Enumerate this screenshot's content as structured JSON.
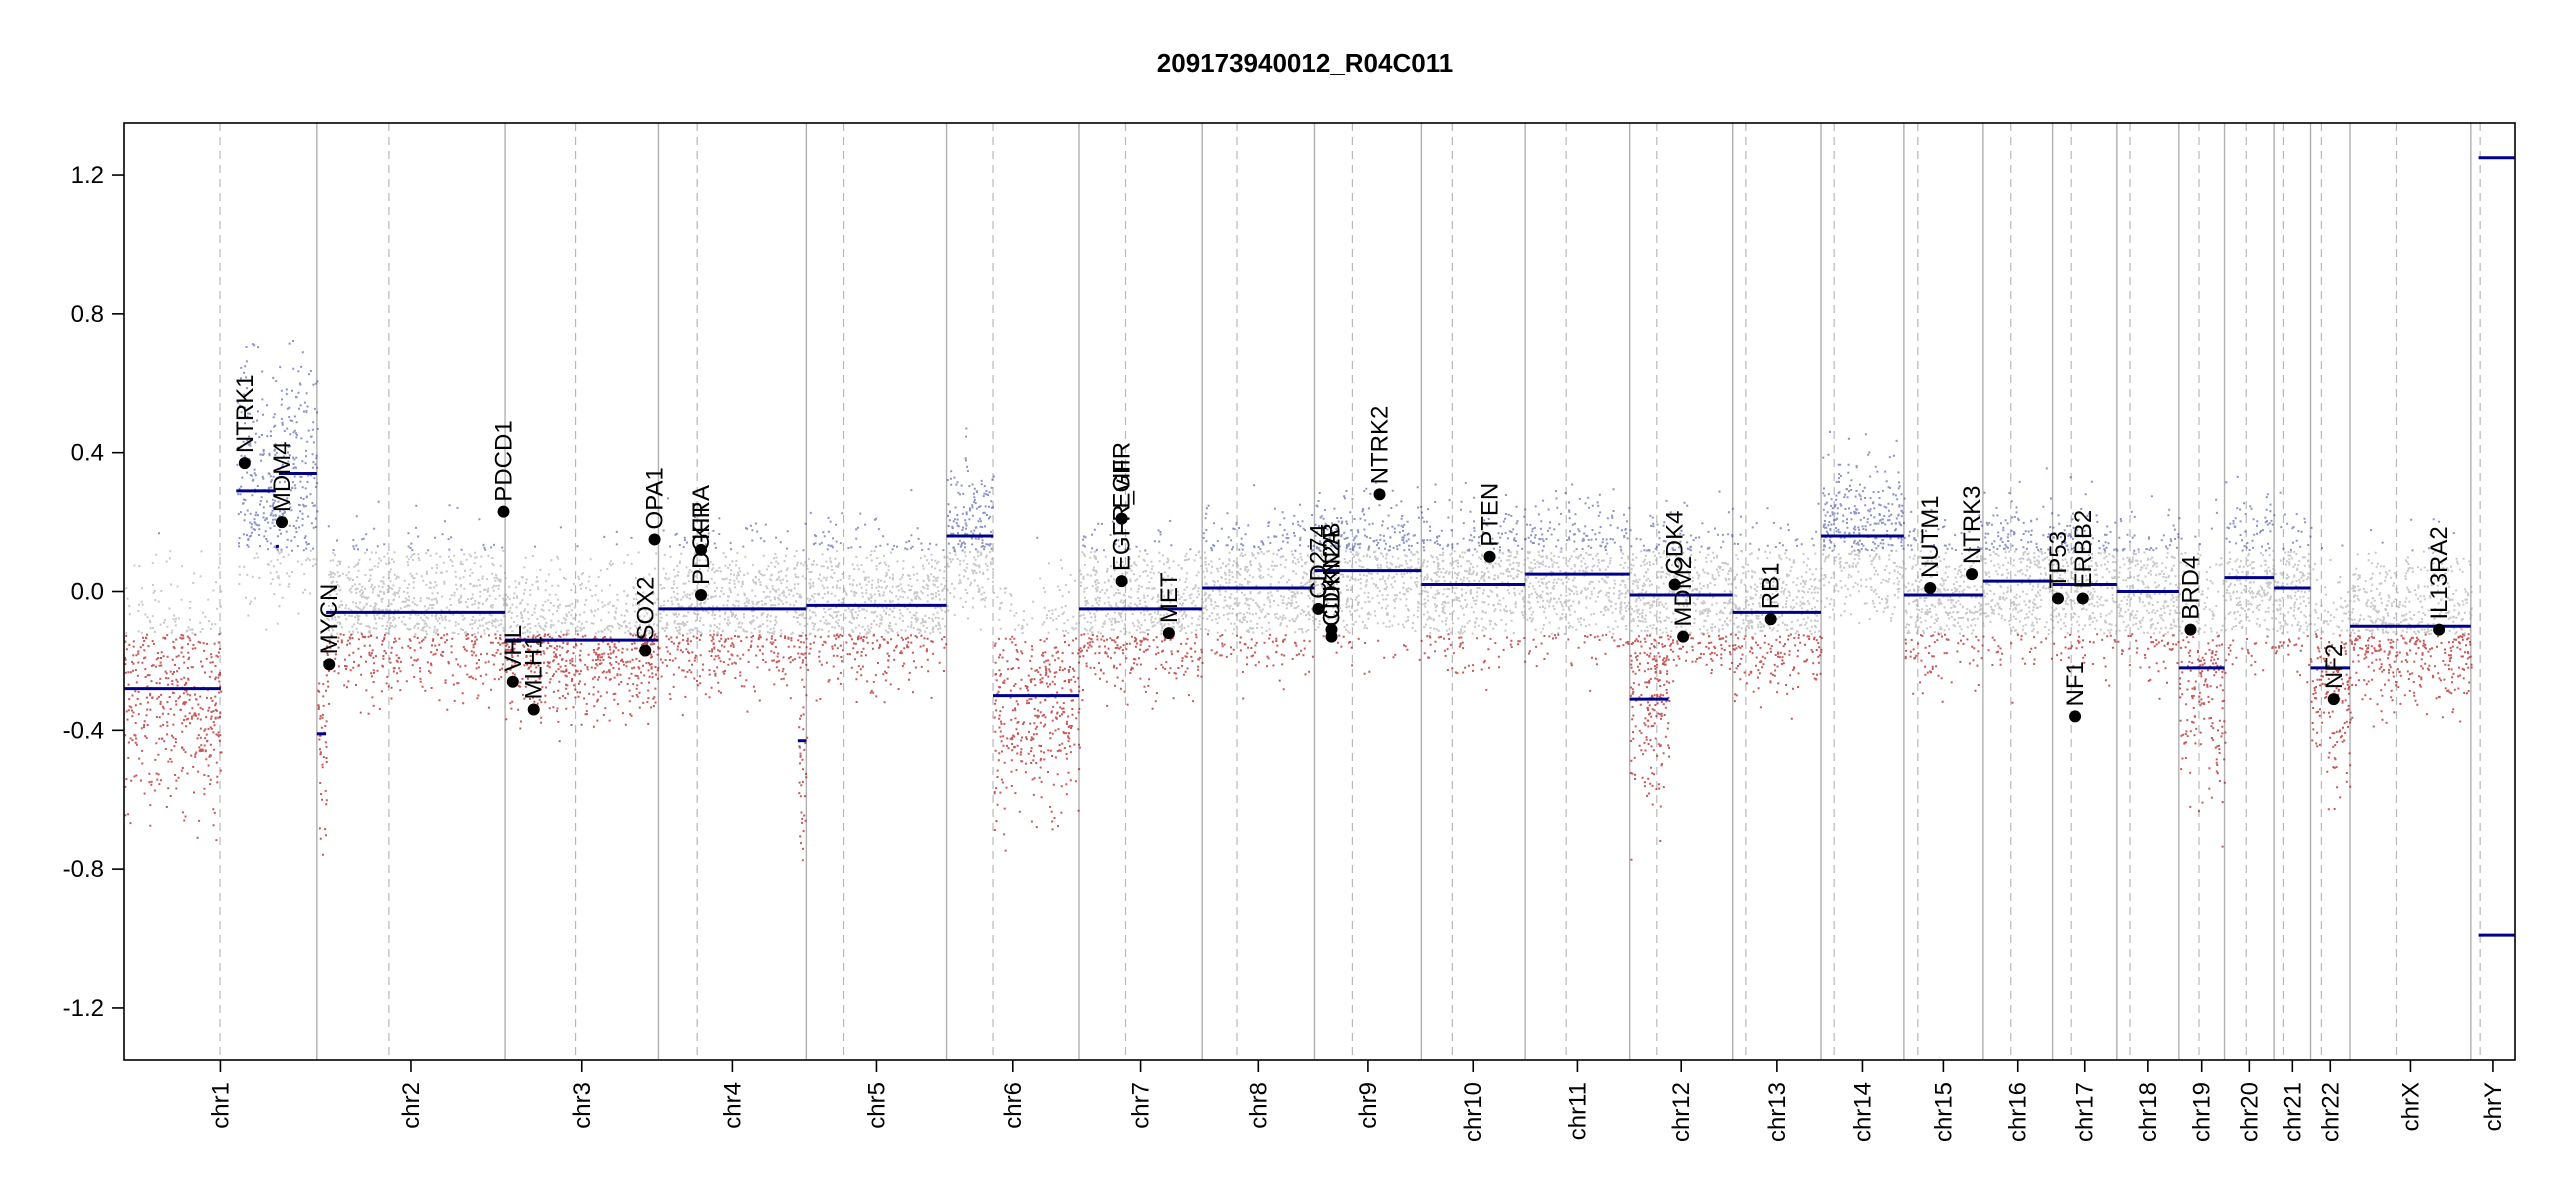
{
  "chart_data": {
    "type": "scatter",
    "title": "209173940012_R04C011",
    "xlabel": "",
    "ylabel": "",
    "ylim": [
      -1.35,
      1.35
    ],
    "y_ticks": [
      "1.2",
      "0.8",
      "0.4",
      "0.0",
      "-0.4",
      "-0.8",
      "-1.2"
    ],
    "y_tick_values": [
      1.2,
      0.8,
      0.4,
      0.0,
      -0.4,
      -0.8,
      -1.2
    ],
    "grid": "vertical chromosome boundaries and centromere dashes",
    "colors": {
      "gain": "#2b3a9a",
      "loss": "#b22222",
      "neutral": "#9a9a9a",
      "segment": "#00008b",
      "gene": "#000000",
      "boundary": "#b0b0b0"
    },
    "chromosome_labels": [
      "chr1",
      "chr2",
      "chr3",
      "chr4",
      "chr5",
      "chr6",
      "chr7",
      "chr8",
      "chr9",
      "chr10",
      "chr11",
      "chr12",
      "chr13",
      "chr14",
      "chr15",
      "chr16",
      "chr17",
      "chr18",
      "chr19",
      "chr20",
      "chr21",
      "chr22",
      "chrX",
      "chrY"
    ],
    "chromosome_lengths_mb": [
      249,
      243,
      198,
      191,
      181,
      171,
      159,
      145,
      138,
      134,
      135,
      133,
      114,
      107,
      102,
      90,
      83,
      80,
      59,
      64,
      47,
      51,
      156,
      57
    ],
    "centromeres_mb": [
      124,
      93,
      91,
      50,
      48,
      60,
      60,
      45,
      49,
      40,
      53,
      35,
      17,
      17,
      18,
      36,
      24,
      17,
      26,
      28,
      12,
      14,
      60,
      12
    ],
    "segments": [
      {
        "chr": "chr1",
        "start": 0,
        "end": 125,
        "value": -0.28
      },
      {
        "chr": "chr1",
        "start": 145,
        "end": 196,
        "value": 0.29
      },
      {
        "chr": "chr1",
        "start": 196,
        "end": 200,
        "value": 0.13
      },
      {
        "chr": "chr1",
        "start": 200,
        "end": 249,
        "value": 0.34
      },
      {
        "chr": "chr2",
        "start": 0,
        "end": 12,
        "value": -0.41
      },
      {
        "chr": "chr2",
        "start": 12,
        "end": 243,
        "value": -0.06
      },
      {
        "chr": "chr3",
        "start": 0,
        "end": 198,
        "value": -0.14
      },
      {
        "chr": "chr4",
        "start": 0,
        "end": 191,
        "value": -0.05
      },
      {
        "chr": "chr4",
        "start": 180,
        "end": 191,
        "value": -0.43
      },
      {
        "chr": "chr5",
        "start": 0,
        "end": 181,
        "value": -0.04
      },
      {
        "chr": "chr6",
        "start": 0,
        "end": 60,
        "value": 0.16
      },
      {
        "chr": "chr6",
        "start": 60,
        "end": 171,
        "value": -0.3
      },
      {
        "chr": "chr7",
        "start": 0,
        "end": 159,
        "value": -0.05
      },
      {
        "chr": "chr8",
        "start": 0,
        "end": 145,
        "value": 0.01
      },
      {
        "chr": "chr9",
        "start": 0,
        "end": 138,
        "value": 0.06
      },
      {
        "chr": "chr10",
        "start": 0,
        "end": 134,
        "value": 0.02
      },
      {
        "chr": "chr11",
        "start": 0,
        "end": 135,
        "value": 0.05
      },
      {
        "chr": "chr12",
        "start": 0,
        "end": 50,
        "value": -0.31
      },
      {
        "chr": "chr12",
        "start": 0,
        "end": 133,
        "value": -0.01
      },
      {
        "chr": "chr13",
        "start": 0,
        "end": 114,
        "value": -0.06
      },
      {
        "chr": "chr14",
        "start": 0,
        "end": 107,
        "value": 0.16
      },
      {
        "chr": "chr15",
        "start": 0,
        "end": 102,
        "value": -0.01
      },
      {
        "chr": "chr16",
        "start": 0,
        "end": 90,
        "value": 0.03
      },
      {
        "chr": "chr17",
        "start": 0,
        "end": 83,
        "value": 0.02
      },
      {
        "chr": "chr18",
        "start": 0,
        "end": 80,
        "value": 0.0
      },
      {
        "chr": "chr19",
        "start": 0,
        "end": 59,
        "value": -0.22
      },
      {
        "chr": "chr20",
        "start": 0,
        "end": 64,
        "value": 0.04
      },
      {
        "chr": "chr21",
        "start": 0,
        "end": 47,
        "value": 0.01
      },
      {
        "chr": "chr22",
        "start": 0,
        "end": 51,
        "value": -0.22
      },
      {
        "chr": "chrX",
        "start": 0,
        "end": 156,
        "value": -0.1
      },
      {
        "chr": "chrY",
        "start": 10,
        "end": 57,
        "value": -0.99
      },
      {
        "chr": "chrY",
        "start": 10,
        "end": 57,
        "value": 1.25
      }
    ],
    "genes": [
      {
        "name": "NTRK1",
        "chr": "chr1",
        "pos": 156,
        "value": 0.37
      },
      {
        "name": "MDM4",
        "chr": "chr1",
        "pos": 204,
        "value": 0.2
      },
      {
        "name": "MYCN",
        "chr": "chr2",
        "pos": 16,
        "value": -0.21
      },
      {
        "name": "PDCD1",
        "chr": "chr2",
        "pos": 241,
        "value": 0.23
      },
      {
        "name": "VHL",
        "chr": "chr3",
        "pos": 10,
        "value": -0.26
      },
      {
        "name": "MLH1",
        "chr": "chr3",
        "pos": 37,
        "value": -0.34
      },
      {
        "name": "SOX2",
        "chr": "chr3",
        "pos": 181,
        "value": -0.17
      },
      {
        "name": "OPA1",
        "chr": "chr3",
        "pos": 193,
        "value": 0.15
      },
      {
        "name": "KIT",
        "chr": "chr4",
        "pos": 55,
        "value": 0.12
      },
      {
        "name": "PDGFRA",
        "chr": "chr4",
        "pos": 55,
        "value": -0.01
      },
      {
        "name": "EGFR",
        "chr": "chr7",
        "pos": 55,
        "value": 0.21
      },
      {
        "name": "EGFR_vIII",
        "chr": "chr7",
        "pos": 55,
        "value": 0.03
      },
      {
        "name": "MET",
        "chr": "chr7",
        "pos": 116,
        "value": -0.12
      },
      {
        "name": "CD274",
        "chr": "chr9",
        "pos": 5,
        "value": -0.05
      },
      {
        "name": "CDKN2A",
        "chr": "chr9",
        "pos": 22,
        "value": -0.13
      },
      {
        "name": "CDKN2B",
        "chr": "chr9",
        "pos": 22,
        "value": -0.11
      },
      {
        "name": "NTRK2",
        "chr": "chr9",
        "pos": 84,
        "value": 0.28
      },
      {
        "name": "PTEN",
        "chr": "chr10",
        "pos": 88,
        "value": 0.1
      },
      {
        "name": "CDK4",
        "chr": "chr12",
        "pos": 58,
        "value": 0.02
      },
      {
        "name": "MDM2",
        "chr": "chr12",
        "pos": 69,
        "value": -0.13
      },
      {
        "name": "RB1",
        "chr": "chr13",
        "pos": 49,
        "value": -0.08
      },
      {
        "name": "NUTM1",
        "chr": "chr15",
        "pos": 34,
        "value": 0.01
      },
      {
        "name": "NTRK3",
        "chr": "chr15",
        "pos": 88,
        "value": 0.05
      },
      {
        "name": "TP53",
        "chr": "chr17",
        "pos": 7,
        "value": -0.02
      },
      {
        "name": "NF1",
        "chr": "chr17",
        "pos": 29,
        "value": -0.36
      },
      {
        "name": "ERBB2",
        "chr": "chr17",
        "pos": 39,
        "value": -0.02
      },
      {
        "name": "BRD4",
        "chr": "chr19",
        "pos": 15,
        "value": -0.11
      },
      {
        "name": "NF2",
        "chr": "chr22",
        "pos": 30,
        "value": -0.31
      },
      {
        "name": "IL13RA2",
        "chr": "chrX",
        "pos": 115,
        "value": -0.11
      }
    ]
  }
}
